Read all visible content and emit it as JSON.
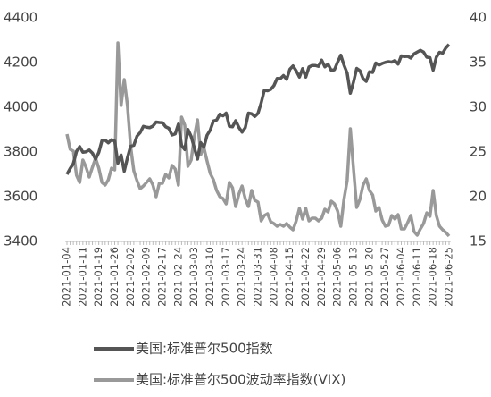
{
  "chart_data": {
    "type": "line",
    "categories": [
      "2021-01-04",
      null,
      null,
      null,
      null,
      "2021-01-11",
      null,
      null,
      null,
      null,
      "2021-01-19",
      null,
      null,
      null,
      null,
      "2021-01-26",
      null,
      null,
      null,
      null,
      "2021-02-02",
      null,
      null,
      null,
      null,
      "2021-02-09",
      null,
      null,
      null,
      null,
      "2021-02-17",
      null,
      null,
      null,
      null,
      "2021-02-24",
      null,
      null,
      null,
      null,
      "2021-03-03",
      null,
      null,
      null,
      null,
      "2021-03-10",
      null,
      null,
      null,
      null,
      "2021-03-17",
      null,
      null,
      null,
      null,
      "2021-03-24",
      null,
      null,
      null,
      null,
      "2021-03-31",
      null,
      null,
      null,
      null,
      "2021-04-08",
      null,
      null,
      null,
      null,
      "2021-04-15",
      null,
      null,
      null,
      null,
      "2021-04-22",
      null,
      null,
      null,
      null,
      "2021-04-29",
      null,
      null,
      null,
      null,
      "2021-05-06",
      null,
      null,
      null,
      null,
      "2021-05-13",
      null,
      null,
      null,
      null,
      "2021-05-20",
      null,
      null,
      null,
      null,
      "2021-05-27",
      null,
      null,
      null,
      null,
      "2021-06-04",
      null,
      null,
      null,
      null,
      "2021-06-11",
      null,
      null,
      null,
      null,
      "2021-06-18",
      null,
      null,
      null,
      null,
      "2021-06-25"
    ],
    "series": [
      {
        "name": "美国:标准普尔500指数",
        "color": "#555555",
        "axis": "y",
        "values": [
          3700,
          3726,
          3748,
          3803,
          3824,
          3799,
          3801,
          3809,
          3795,
          3768,
          3798,
          3851,
          3853,
          3841,
          3855,
          3849,
          3750,
          3787,
          3714,
          3774,
          3826,
          3830,
          3871,
          3887,
          3915,
          3911,
          3909,
          3916,
          3934,
          3932,
          3931,
          3913,
          3906,
          3876,
          3881,
          3925,
          3829,
          3811,
          3901,
          3870,
          3819,
          3768,
          3842,
          3821,
          3875,
          3898,
          3939,
          3943,
          3969,
          3962,
          3974,
          3915,
          3913,
          3940,
          3910,
          3889,
          3909,
          3974,
          3971,
          3959,
          3973,
          4020,
          4077,
          4074,
          4080,
          4097,
          4129,
          4128,
          4142,
          4125,
          4170,
          4185,
          4163,
          4135,
          4173,
          4135,
          4180,
          4187,
          4187,
          4183,
          4211,
          4181,
          4193,
          4165,
          4168,
          4202,
          4233,
          4189,
          4153,
          4063,
          4113,
          4174,
          4164,
          4128,
          4116,
          4159,
          4156,
          4198,
          4189,
          4196,
          4201,
          4204,
          4202,
          4209,
          4193,
          4230,
          4227,
          4228,
          4220,
          4239,
          4247,
          4255,
          4247,
          4224,
          4222,
          4166,
          4224,
          4246,
          4242,
          4266,
          4281
        ]
      },
      {
        "name": "美国:标准普尔500波动率指数(VIX)",
        "color": "#999999",
        "axis": "y2",
        "values": [
          27.0,
          25.3,
          25.1,
          22.4,
          21.6,
          24.1,
          23.3,
          22.2,
          23.3,
          24.3,
          23.2,
          21.6,
          21.3,
          21.9,
          23.2,
          23.0,
          37.2,
          30.2,
          33.1,
          30.2,
          25.6,
          22.9,
          21.8,
          20.9,
          21.2,
          21.6,
          22.0,
          21.3,
          20.0,
          21.5,
          21.5,
          22.5,
          22.1,
          23.5,
          23.1,
          21.3,
          28.9,
          28.0,
          23.4,
          24.1,
          26.7,
          28.6,
          24.7,
          25.5,
          24.0,
          22.6,
          21.9,
          20.7,
          20.0,
          19.8,
          19.2,
          21.6,
          21.0,
          18.9,
          20.3,
          21.2,
          19.8,
          18.9,
          20.7,
          19.6,
          19.4,
          17.3,
          17.9,
          18.1,
          17.2,
          17.0,
          16.7,
          16.9,
          16.7,
          17.0,
          16.6,
          16.3,
          17.3,
          18.7,
          17.5,
          18.7,
          17.3,
          17.6,
          17.6,
          17.3,
          17.6,
          18.6,
          18.3,
          19.5,
          19.2,
          18.4,
          16.7,
          19.7,
          21.8,
          27.6,
          23.1,
          18.8,
          19.7,
          21.3,
          22.0,
          20.7,
          20.2,
          18.4,
          18.8,
          17.4,
          16.7,
          16.8,
          17.9,
          17.5,
          18.0,
          16.4,
          16.4,
          17.1,
          17.9,
          16.1,
          15.7,
          16.4,
          17.0,
          18.2,
          17.8,
          20.7,
          17.9,
          16.7,
          16.3,
          16.0,
          15.6
        ]
      }
    ],
    "ylim": [
      3400,
      4400
    ],
    "yticks": [
      3400,
      3600,
      3800,
      4000,
      4200,
      4400
    ],
    "y2lim": [
      15,
      40
    ],
    "y2ticks": [
      15,
      20,
      25,
      30,
      35,
      40
    ],
    "grid": false,
    "legend": "bottom"
  }
}
